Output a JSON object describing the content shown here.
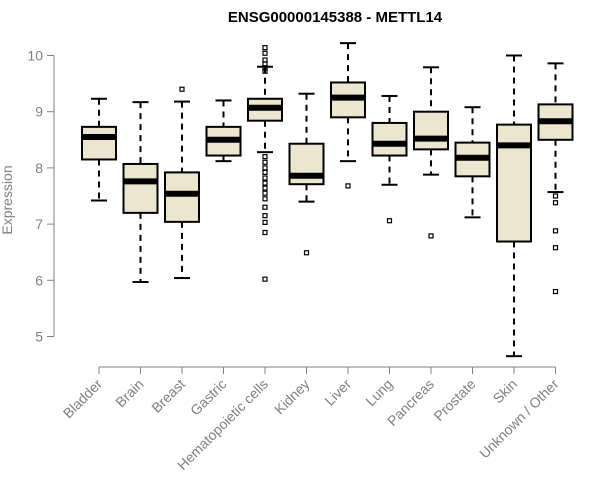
{
  "chart_data": {
    "type": "boxplot",
    "title": "ENSG00000145388 - METTL14",
    "xlabel": "",
    "ylabel": "Expression",
    "ylim": [
      4.5,
      10.3
    ],
    "yticks": [
      5,
      6,
      7,
      8,
      9,
      10
    ],
    "ytick_labels": [
      "5",
      "6",
      "7",
      "8",
      "9",
      "10"
    ],
    "box_fill": "#ede6cf",
    "line_color": "#000000",
    "axis_color": "#808080",
    "categories": [
      "Bladder",
      "Brain",
      "Breast",
      "Gastric",
      "Hematopoietic cells",
      "Kidney",
      "Liver",
      "Lung",
      "Pancreas",
      "Prostate",
      "Skin",
      "Unknown / Other"
    ],
    "series": [
      {
        "name": "Bladder",
        "whisker_low": 7.42,
        "q1": 8.15,
        "median": 8.55,
        "q3": 8.73,
        "whisker_high": 9.23,
        "outliers": []
      },
      {
        "name": "Brain",
        "whisker_low": 5.97,
        "q1": 7.2,
        "median": 7.76,
        "q3": 8.07,
        "whisker_high": 9.17,
        "outliers": []
      },
      {
        "name": "Breast",
        "whisker_low": 6.04,
        "q1": 7.04,
        "median": 7.54,
        "q3": 7.92,
        "whisker_high": 9.18,
        "outliers": [
          9.4
        ]
      },
      {
        "name": "Gastric",
        "whisker_low": 8.12,
        "q1": 8.22,
        "median": 8.5,
        "q3": 8.73,
        "whisker_high": 9.2,
        "outliers": []
      },
      {
        "name": "Hematopoietic cells",
        "whisker_low": 8.28,
        "q1": 8.84,
        "median": 9.07,
        "q3": 9.23,
        "whisker_high": 9.8,
        "outliers": [
          10.14,
          10.04,
          9.92,
          9.85,
          9.78,
          9.72,
          8.2,
          8.1,
          8.0,
          7.92,
          7.82,
          7.73,
          7.64,
          7.55,
          7.45,
          7.3,
          7.15,
          7.03,
          6.85,
          6.02
        ]
      },
      {
        "name": "Kidney",
        "whisker_low": 7.4,
        "q1": 7.71,
        "median": 7.86,
        "q3": 8.43,
        "whisker_high": 9.32,
        "outliers": [
          6.49
        ]
      },
      {
        "name": "Liver",
        "whisker_low": 8.12,
        "q1": 8.9,
        "median": 9.25,
        "q3": 9.52,
        "whisker_high": 10.22,
        "outliers": [
          7.68
        ]
      },
      {
        "name": "Lung",
        "whisker_low": 7.7,
        "q1": 8.22,
        "median": 8.43,
        "q3": 8.8,
        "whisker_high": 9.28,
        "outliers": [
          7.06
        ]
      },
      {
        "name": "Pancreas",
        "whisker_low": 7.88,
        "q1": 8.33,
        "median": 8.52,
        "q3": 9.0,
        "whisker_high": 9.79,
        "outliers": [
          6.79
        ]
      },
      {
        "name": "Prostate",
        "whisker_low": 7.12,
        "q1": 7.85,
        "median": 8.18,
        "q3": 8.45,
        "whisker_high": 9.08,
        "outliers": []
      },
      {
        "name": "Skin",
        "whisker_low": 4.65,
        "q1": 6.69,
        "median": 8.4,
        "q3": 8.77,
        "whisker_high": 10.0,
        "outliers": []
      },
      {
        "name": "Unknown / Other",
        "whisker_low": 7.57,
        "q1": 8.5,
        "median": 8.83,
        "q3": 9.13,
        "whisker_high": 9.86,
        "outliers": [
          7.5,
          7.38,
          6.88,
          6.58,
          5.8
        ]
      }
    ]
  }
}
